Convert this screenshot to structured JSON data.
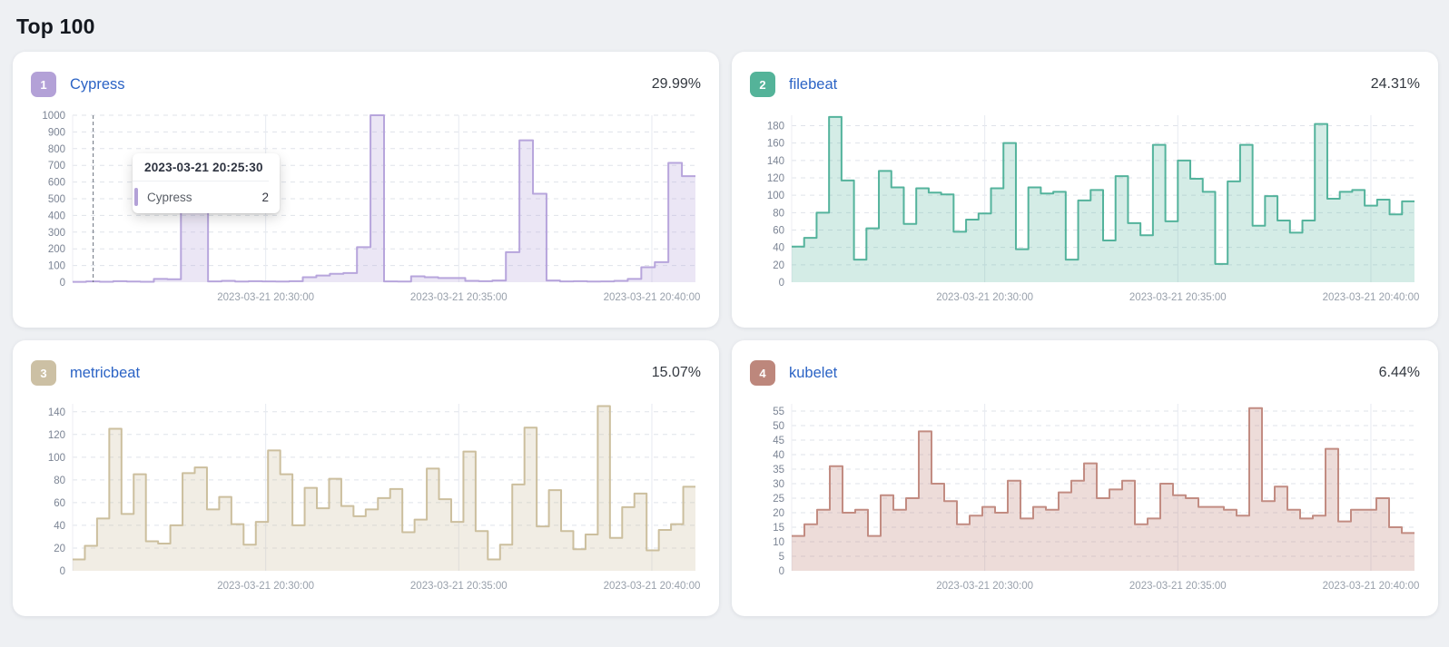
{
  "page": {
    "title": "Top 100",
    "background": "#eef0f3"
  },
  "cards": [
    {
      "rank": "1",
      "name": "Cypress",
      "percent": "29.99%",
      "colors": {
        "badge": "#b3a1d7",
        "stroke": "#b7a5dc",
        "fill": "rgba(183,165,220,0.28)"
      },
      "chart_data": {
        "type": "area",
        "title": "Cypress",
        "ylabel": "",
        "xlabel": "",
        "y_ticks": [
          0,
          100,
          200,
          300,
          400,
          500,
          600,
          700,
          800,
          900,
          1000
        ],
        "y_render_max": 1000,
        "x_tick_labels": [
          "2023-03-21 20:30:00",
          "2023-03-21 20:35:00",
          "2023-03-21 20:40:00"
        ],
        "x_tick_pos": [
          0.31,
          0.62,
          0.93
        ],
        "values": [
          2,
          5,
          3,
          6,
          4,
          3,
          20,
          18,
          500,
          480,
          5,
          8,
          4,
          6,
          5,
          4,
          6,
          30,
          40,
          50,
          55,
          210,
          1000,
          5,
          4,
          35,
          30,
          25,
          25,
          8,
          6,
          10,
          180,
          850,
          530,
          10,
          5,
          6,
          4,
          5,
          8,
          20,
          90,
          120,
          715,
          635
        ],
        "cursor_pos": 0.033,
        "tooltip": {
          "date": "2023-03-21 20:25:30",
          "series": "Cypress",
          "value": "2"
        }
      }
    },
    {
      "rank": "2",
      "name": "filebeat",
      "percent": "24.31%",
      "colors": {
        "badge": "#54b399",
        "stroke": "#54b39c",
        "fill": "rgba(84,179,156,0.25)"
      },
      "chart_data": {
        "type": "area",
        "title": "filebeat",
        "ylabel": "",
        "xlabel": "",
        "y_ticks": [
          0,
          20,
          40,
          60,
          80,
          100,
          120,
          140,
          160,
          180
        ],
        "y_render_max": 192,
        "x_tick_labels": [
          "2023-03-21 20:30:00",
          "2023-03-21 20:35:00",
          "2023-03-21 20:40:00"
        ],
        "x_tick_pos": [
          0.31,
          0.62,
          0.93
        ],
        "values": [
          41,
          51,
          80,
          190,
          117,
          26,
          62,
          128,
          109,
          67,
          108,
          103,
          101,
          58,
          72,
          79,
          108,
          160,
          38,
          109,
          102,
          104,
          26,
          94,
          106,
          48,
          122,
          68,
          54,
          158,
          70,
          140,
          119,
          104,
          21,
          116,
          158,
          65,
          99,
          71,
          57,
          71,
          182,
          96,
          104,
          106,
          88,
          95,
          78,
          93
        ]
      }
    },
    {
      "rank": "3",
      "name": "metricbeat",
      "percent": "15.07%",
      "colors": {
        "badge": "#ccc0a4",
        "stroke": "#ccbf9e",
        "fill": "rgba(204,191,158,0.28)"
      },
      "chart_data": {
        "type": "area",
        "title": "metricbeat",
        "ylabel": "",
        "xlabel": "",
        "y_ticks": [
          0,
          20,
          40,
          60,
          80,
          100,
          120,
          140
        ],
        "y_render_max": 147,
        "x_tick_labels": [
          "2023-03-21 20:30:00",
          "2023-03-21 20:35:00",
          "2023-03-21 20:40:00"
        ],
        "x_tick_pos": [
          0.31,
          0.62,
          0.93
        ],
        "values": [
          10,
          22,
          46,
          125,
          50,
          85,
          26,
          24,
          40,
          86,
          91,
          54,
          65,
          41,
          23,
          43,
          106,
          85,
          40,
          73,
          55,
          81,
          57,
          48,
          54,
          64,
          72,
          34,
          45,
          90,
          63,
          43,
          105,
          35,
          10,
          23,
          76,
          126,
          39,
          71,
          35,
          19,
          32,
          145,
          29,
          56,
          68,
          18,
          36,
          41,
          74
        ]
      }
    },
    {
      "rank": "4",
      "name": "kubelet",
      "percent": "6.44%",
      "colors": {
        "badge": "#bd877c",
        "stroke": "#c28c82",
        "fill": "rgba(194,140,130,0.30)"
      },
      "chart_data": {
        "type": "area",
        "title": "kubelet",
        "ylabel": "",
        "xlabel": "",
        "y_ticks": [
          0,
          5,
          10,
          15,
          20,
          25,
          30,
          35,
          40,
          45,
          50,
          55
        ],
        "y_render_max": 57.5,
        "x_tick_labels": [
          "2023-03-21 20:30:00",
          "2023-03-21 20:35:00",
          "2023-03-21 20:40:00"
        ],
        "x_tick_pos": [
          0.31,
          0.62,
          0.93
        ],
        "values": [
          12,
          16,
          21,
          36,
          20,
          21,
          12,
          26,
          21,
          25,
          48,
          30,
          24,
          16,
          19,
          22,
          20,
          31,
          18,
          22,
          21,
          27,
          31,
          37,
          25,
          28,
          31,
          16,
          18,
          30,
          26,
          25,
          22,
          22,
          21,
          19,
          56,
          24,
          29,
          21,
          18,
          19,
          42,
          17,
          21,
          21,
          25,
          15,
          13
        ]
      }
    }
  ]
}
